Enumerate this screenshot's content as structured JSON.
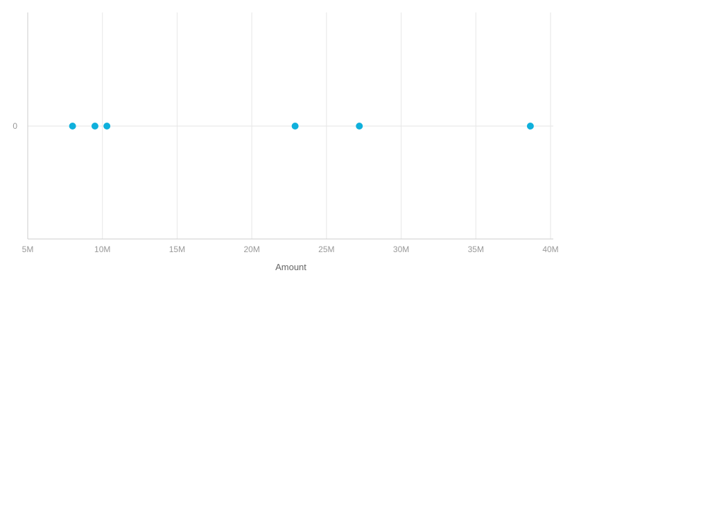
{
  "chart_data": {
    "type": "scatter",
    "xlabel": "Amount",
    "ylabel": "",
    "xlim": [
      5000000,
      40000000
    ],
    "x_ticks": [
      5000000,
      10000000,
      15000000,
      20000000,
      25000000,
      30000000,
      35000000,
      40000000
    ],
    "x_tick_labels": [
      "5M",
      "10M",
      "15M",
      "20M",
      "25M",
      "30M",
      "35M",
      "40M"
    ],
    "y_ticks": [
      0
    ],
    "y_tick_labels": [
      "0"
    ],
    "grid": true,
    "series": [
      {
        "color": "#0fb0dc",
        "points": [
          {
            "x": 8000000,
            "y": 0
          },
          {
            "x": 9500000,
            "y": 0
          },
          {
            "x": 10300000,
            "y": 0
          },
          {
            "x": 22900000,
            "y": 0
          },
          {
            "x": 27200000,
            "y": 0
          },
          {
            "x": 38650000,
            "y": 0
          }
        ]
      }
    ],
    "colors": {
      "grid": "#e6e6e6",
      "axis": "#cccccc",
      "tick_label": "#999999",
      "axis_title": "#666666"
    }
  }
}
